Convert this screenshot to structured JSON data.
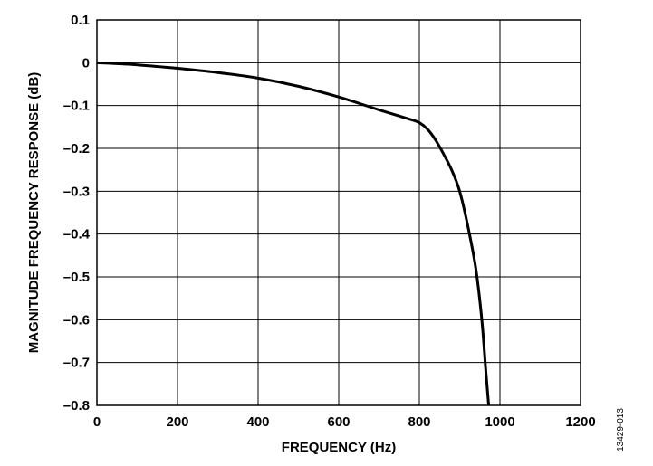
{
  "chart_data": {
    "type": "line",
    "title": "",
    "xlabel": "FREQUENCY (Hz)",
    "ylabel": "MAGNITUDE FREQUENCY RESPONSE (dB)",
    "xlim": [
      0,
      1200
    ],
    "ylim": [
      -0.8,
      0.1
    ],
    "x_ticks": [
      0,
      200,
      400,
      600,
      800,
      1000,
      1200
    ],
    "y_ticks": [
      0.1,
      0,
      -0.1,
      -0.2,
      -0.3,
      -0.4,
      -0.5,
      -0.6,
      -0.7,
      -0.8
    ],
    "x_tick_labels": [
      "0",
      "200",
      "400",
      "600",
      "800",
      "1000",
      "1200"
    ],
    "y_tick_labels": [
      "0.1",
      "0",
      "–0.1",
      "–0.2",
      "–0.3",
      "–0.4",
      "–0.5",
      "–0.6",
      "–0.7",
      "–0.8"
    ],
    "grid": true,
    "legend": "none",
    "series": [
      {
        "color": "#000000",
        "points": [
          [
            0,
            0.0
          ],
          [
            100,
            -0.005
          ],
          [
            200,
            -0.013
          ],
          [
            300,
            -0.023
          ],
          [
            400,
            -0.036
          ],
          [
            500,
            -0.055
          ],
          [
            600,
            -0.08
          ],
          [
            700,
            -0.11
          ],
          [
            780,
            -0.133
          ],
          [
            800,
            -0.14
          ],
          [
            820,
            -0.155
          ],
          [
            840,
            -0.18
          ],
          [
            860,
            -0.213
          ],
          [
            880,
            -0.25
          ],
          [
            900,
            -0.3
          ],
          [
            920,
            -0.38
          ],
          [
            940,
            -0.48
          ],
          [
            955,
            -0.6
          ],
          [
            965,
            -0.72
          ],
          [
            972,
            -0.8
          ]
        ]
      }
    ]
  },
  "figure_id": "13429-013"
}
